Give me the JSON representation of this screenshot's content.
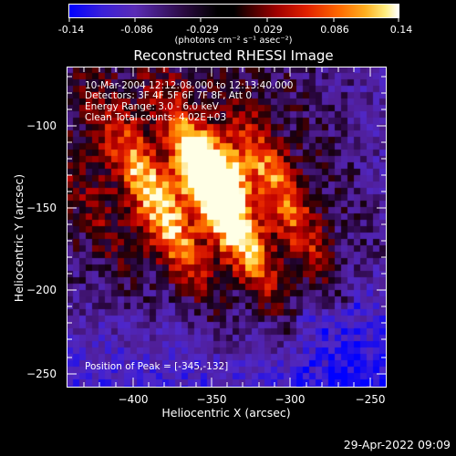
{
  "colorbar": {
    "tick_labels": [
      "-0.14",
      "-0.086",
      "-0.029",
      "0.029",
      "0.086",
      "0.14"
    ],
    "units_label": "(photons cm⁻² s⁻¹ asec⁻²)"
  },
  "plot": {
    "title": "Reconstructed RHESSI Image",
    "info_lines": [
      "10-Mar-2004 12:12:08.000 to 12:13:40.000",
      "Detectors: 3F 4F 5F 6F 7F 8F, Att 0",
      "Energy Range: 3.0 - 6.0 keV",
      "Clean    Total counts: 4.02E+03"
    ],
    "peak_text": "Position of Peak = [-345,-132]",
    "xlabel": "Heliocentric X (arcsec)",
    "ylabel": "Heliocentric Y (arcsec)",
    "x_tick_labels": [
      "−400",
      "−350",
      "−300",
      "−250"
    ],
    "y_tick_labels": [
      "−100",
      "−150",
      "−200",
      "−250"
    ]
  },
  "footer": {
    "timestamp": "29-Apr-2022 09:09"
  },
  "colors": {
    "background": "#000000",
    "axes": "#ffffff",
    "colormap": [
      "#0000ff",
      "#6a2cb5",
      "#1a001a",
      "#000000",
      "#5a0000",
      "#c00000",
      "#ff4000",
      "#ff9a00",
      "#ffe060",
      "#ffffff"
    ]
  }
}
